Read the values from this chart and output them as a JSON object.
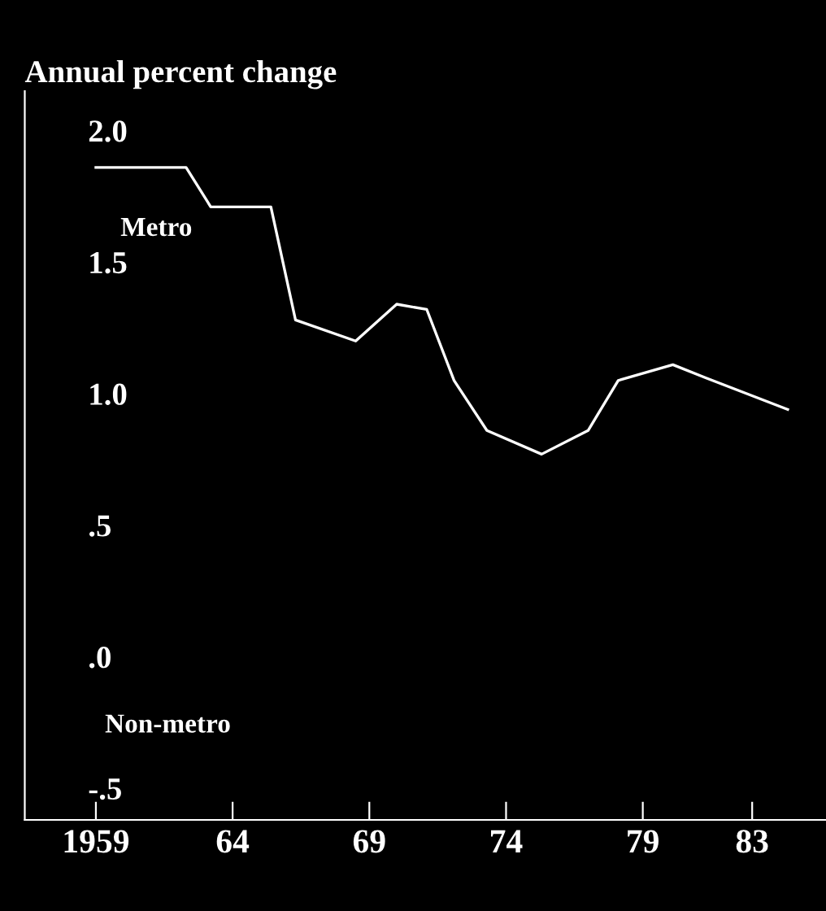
{
  "chart_data": {
    "type": "line",
    "ylabel": "Annual percent change",
    "x": [
      1959,
      1962.3,
      1963.2,
      1965.4,
      1966.3,
      1968.5,
      1970,
      1971.1,
      1972.1,
      1973.3,
      1975.3,
      1977,
      1978.1,
      1980.1,
      1981.3,
      1984.3
    ],
    "series": [
      {
        "name": "Metro",
        "color": "#ffffff",
        "values": [
          1.86,
          1.86,
          1.71,
          1.71,
          1.28,
          1.2,
          1.34,
          1.32,
          1.05,
          0.86,
          0.77,
          0.86,
          1.05,
          1.11,
          1.06,
          0.94
        ]
      }
    ],
    "annotations": [
      "Non-metro"
    ],
    "xlim": [
      1956.4,
      1985.7
    ],
    "ylim": [
      -0.62,
      2.15
    ],
    "xticks": [
      {
        "value": 1959,
        "label": "1959"
      },
      {
        "value": 1964,
        "label": "64"
      },
      {
        "value": 1969,
        "label": "69"
      },
      {
        "value": 1974,
        "label": "74"
      },
      {
        "value": 1979,
        "label": "79"
      },
      {
        "value": 1983,
        "label": "83"
      }
    ],
    "yticks": [
      {
        "value": 2.0,
        "label": "2.0"
      },
      {
        "value": 1.5,
        "label": "1.5"
      },
      {
        "value": 1.0,
        "label": "1.0"
      },
      {
        "value": 0.5,
        "label": ".5"
      },
      {
        "value": 0.0,
        "label": ".0"
      },
      {
        "value": -0.5,
        "label": "-.5"
      }
    ],
    "grid": false,
    "legend": false,
    "marker": "none",
    "line_style": "solid"
  }
}
